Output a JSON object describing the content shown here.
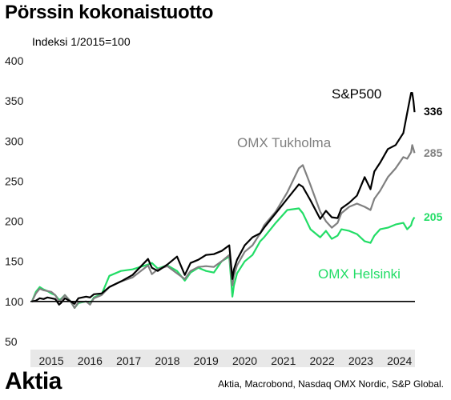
{
  "title": "Pörssin kokonaistuotto",
  "subtitle": "Indeksi 1/2015=100",
  "source": "Aktia, Macrobond, Nasdaq OMX Nordic, S&P Global.",
  "logo": "Aktia",
  "colors": {
    "sp500": "#000000",
    "stockholm": "#808080",
    "helsinki": "#22dd66",
    "baseline": "#000000",
    "axis_band": "#e8e8e8"
  },
  "chart_data": {
    "type": "line",
    "title": "Pörssin kokonaistuotto",
    "subtitle": "Indeksi 1/2015=100",
    "xlabel": "",
    "ylabel": "",
    "xlim": [
      2014.96,
      2024.9
    ],
    "ylim": [
      40,
      410
    ],
    "y_ticks": [
      50,
      100,
      150,
      200,
      250,
      300,
      350,
      400
    ],
    "x_tick_labels": [
      "2015",
      "2016",
      "2017",
      "2018",
      "2019",
      "2020",
      "2021",
      "2022",
      "2023",
      "2024"
    ],
    "baseline": 100,
    "grid": false,
    "legend": "inline labels",
    "series": [
      {
        "name": "S&P500",
        "end_label": "336",
        "color": "#000000",
        "x": [
          2015.0,
          2015.1,
          2015.2,
          2015.3,
          2015.4,
          2015.5,
          2015.6,
          2015.7,
          2015.75,
          2015.85,
          2016.0,
          2016.1,
          2016.2,
          2016.4,
          2016.5,
          2016.6,
          2016.8,
          2017.0,
          2017.3,
          2017.6,
          2018.0,
          2018.1,
          2018.25,
          2018.5,
          2018.75,
          2018.95,
          2019.1,
          2019.3,
          2019.5,
          2019.7,
          2019.9,
          2020.1,
          2020.18,
          2020.22,
          2020.3,
          2020.5,
          2020.7,
          2020.9,
          2021.0,
          2021.3,
          2021.6,
          2021.9,
          2022.0,
          2022.2,
          2022.45,
          2022.6,
          2022.75,
          2022.9,
          2023.0,
          2023.2,
          2023.4,
          2023.6,
          2023.75,
          2023.85,
          2024.0,
          2024.2,
          2024.4,
          2024.6,
          2024.7,
          2024.8,
          2024.83,
          2024.86,
          2024.89
        ],
        "values": [
          100,
          101,
          104,
          103,
          105,
          104,
          103,
          96,
          98,
          104,
          100,
          97,
          104,
          106,
          105,
          109,
          110,
          118,
          125,
          133,
          153,
          142,
          138,
          146,
          156,
          133,
          148,
          152,
          158,
          159,
          163,
          170,
          128,
          140,
          152,
          170,
          180,
          185,
          192,
          210,
          228,
          246,
          243,
          226,
          203,
          213,
          205,
          204,
          216,
          223,
          232,
          255,
          240,
          262,
          273,
          290,
          295,
          310,
          335,
          360,
          360,
          350,
          336
        ]
      },
      {
        "name": "OMX Tukholma",
        "end_label": "285",
        "color": "#808080",
        "x": [
          2015.0,
          2015.1,
          2015.2,
          2015.3,
          2015.4,
          2015.5,
          2015.6,
          2015.7,
          2015.75,
          2015.85,
          2016.0,
          2016.1,
          2016.2,
          2016.4,
          2016.5,
          2016.6,
          2016.8,
          2017.0,
          2017.3,
          2017.6,
          2018.0,
          2018.1,
          2018.25,
          2018.5,
          2018.75,
          2018.95,
          2019.1,
          2019.3,
          2019.5,
          2019.7,
          2019.9,
          2020.1,
          2020.18,
          2020.22,
          2020.3,
          2020.5,
          2020.7,
          2020.9,
          2021.0,
          2021.3,
          2021.6,
          2021.9,
          2022.0,
          2022.2,
          2022.45,
          2022.6,
          2022.75,
          2022.9,
          2023.0,
          2023.2,
          2023.4,
          2023.6,
          2023.75,
          2023.85,
          2024.0,
          2024.2,
          2024.4,
          2024.6,
          2024.7,
          2024.8,
          2024.83,
          2024.86,
          2024.89
        ],
        "values": [
          100,
          110,
          116,
          114,
          113,
          112,
          108,
          100,
          102,
          108,
          100,
          92,
          99,
          100,
          96,
          104,
          108,
          118,
          125,
          130,
          145,
          134,
          140,
          144,
          135,
          128,
          138,
          143,
          144,
          143,
          150,
          158,
          120,
          132,
          145,
          162,
          170,
          185,
          195,
          212,
          236,
          266,
          270,
          245,
          212,
          200,
          192,
          198,
          210,
          218,
          222,
          218,
          214,
          228,
          238,
          255,
          266,
          280,
          278,
          286,
          295,
          290,
          285
        ]
      },
      {
        "name": "OMX Helsinki",
        "end_label": "205",
        "color": "#22dd66",
        "x": [
          2015.0,
          2015.1,
          2015.2,
          2015.3,
          2015.4,
          2015.5,
          2015.6,
          2015.7,
          2015.75,
          2015.85,
          2016.0,
          2016.1,
          2016.2,
          2016.4,
          2016.5,
          2016.6,
          2016.8,
          2017.0,
          2017.3,
          2017.6,
          2018.0,
          2018.1,
          2018.25,
          2018.5,
          2018.75,
          2018.95,
          2019.1,
          2019.3,
          2019.5,
          2019.7,
          2019.9,
          2020.1,
          2020.18,
          2020.22,
          2020.3,
          2020.5,
          2020.7,
          2020.9,
          2021.0,
          2021.3,
          2021.6,
          2021.9,
          2022.0,
          2022.2,
          2022.45,
          2022.6,
          2022.75,
          2022.9,
          2023.0,
          2023.2,
          2023.4,
          2023.6,
          2023.75,
          2023.85,
          2024.0,
          2024.2,
          2024.4,
          2024.6,
          2024.7,
          2024.8,
          2024.83,
          2024.86,
          2024.89
        ],
        "values": [
          100,
          112,
          118,
          115,
          113,
          110,
          108,
          102,
          103,
          108,
          100,
          92,
          98,
          100,
          97,
          105,
          109,
          132,
          138,
          140,
          146,
          148,
          141,
          145,
          138,
          126,
          136,
          142,
          138,
          136,
          150,
          156,
          106,
          120,
          135,
          150,
          158,
          175,
          180,
          198,
          214,
          216,
          210,
          190,
          180,
          188,
          178,
          182,
          190,
          188,
          184,
          175,
          173,
          182,
          190,
          192,
          196,
          198,
          190,
          195,
          200,
          203,
          205
        ]
      }
    ]
  }
}
